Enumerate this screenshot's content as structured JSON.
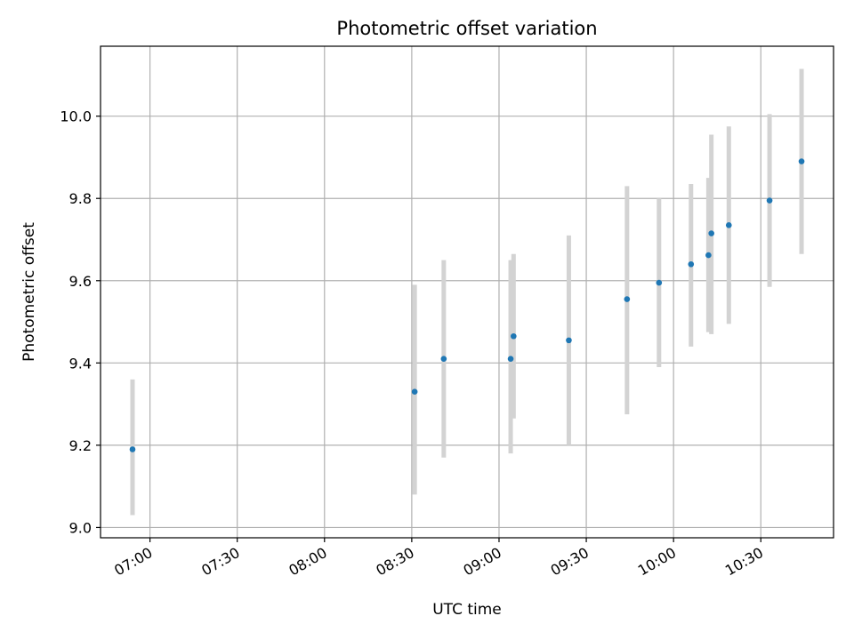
{
  "chart_data": {
    "type": "scatter",
    "title": "Photometric offset variation",
    "xlabel": "UTC time",
    "ylabel": "Photometric offset",
    "grid": true,
    "x_ticks": [
      "07:00",
      "07:30",
      "08:00",
      "08:30",
      "09:00",
      "09:30",
      "10:00",
      "10:30"
    ],
    "y_ticks": [
      "9.0",
      "9.2",
      "9.4",
      "9.6",
      "9.8",
      "10.0"
    ],
    "xlim": [
      "06:43",
      "10:55"
    ],
    "ylim": [
      8.975,
      10.17
    ],
    "colors": {
      "point": "#1f77b4",
      "errorbar": "#d3d3d3",
      "grid": "#b0b0b0"
    },
    "points": [
      {
        "x": "06:54",
        "y": 9.19,
        "yerr_low": 9.03,
        "yerr_high": 9.36
      },
      {
        "x": "08:31",
        "y": 9.33,
        "yerr_low": 9.08,
        "yerr_high": 9.59
      },
      {
        "x": "08:41",
        "y": 9.41,
        "yerr_low": 9.17,
        "yerr_high": 9.65
      },
      {
        "x": "09:04",
        "y": 9.41,
        "yerr_low": 9.18,
        "yerr_high": 9.65
      },
      {
        "x": "09:05",
        "y": 9.465,
        "yerr_low": 9.265,
        "yerr_high": 9.665
      },
      {
        "x": "09:24",
        "y": 9.455,
        "yerr_low": 9.2,
        "yerr_high": 9.71
      },
      {
        "x": "09:44",
        "y": 9.555,
        "yerr_low": 9.275,
        "yerr_high": 9.83
      },
      {
        "x": "09:55",
        "y": 9.595,
        "yerr_low": 9.39,
        "yerr_high": 9.8
      },
      {
        "x": "10:06",
        "y": 9.64,
        "yerr_low": 9.44,
        "yerr_high": 9.835
      },
      {
        "x": "10:12",
        "y": 9.662,
        "yerr_low": 9.475,
        "yerr_high": 9.85
      },
      {
        "x": "10:13",
        "y": 9.715,
        "yerr_low": 9.47,
        "yerr_high": 9.955
      },
      {
        "x": "10:19",
        "y": 9.735,
        "yerr_low": 9.495,
        "yerr_high": 9.975
      },
      {
        "x": "10:33",
        "y": 9.795,
        "yerr_low": 9.585,
        "yerr_high": 10.005
      },
      {
        "x": "10:44",
        "y": 9.89,
        "yerr_low": 9.665,
        "yerr_high": 10.115
      }
    ]
  }
}
